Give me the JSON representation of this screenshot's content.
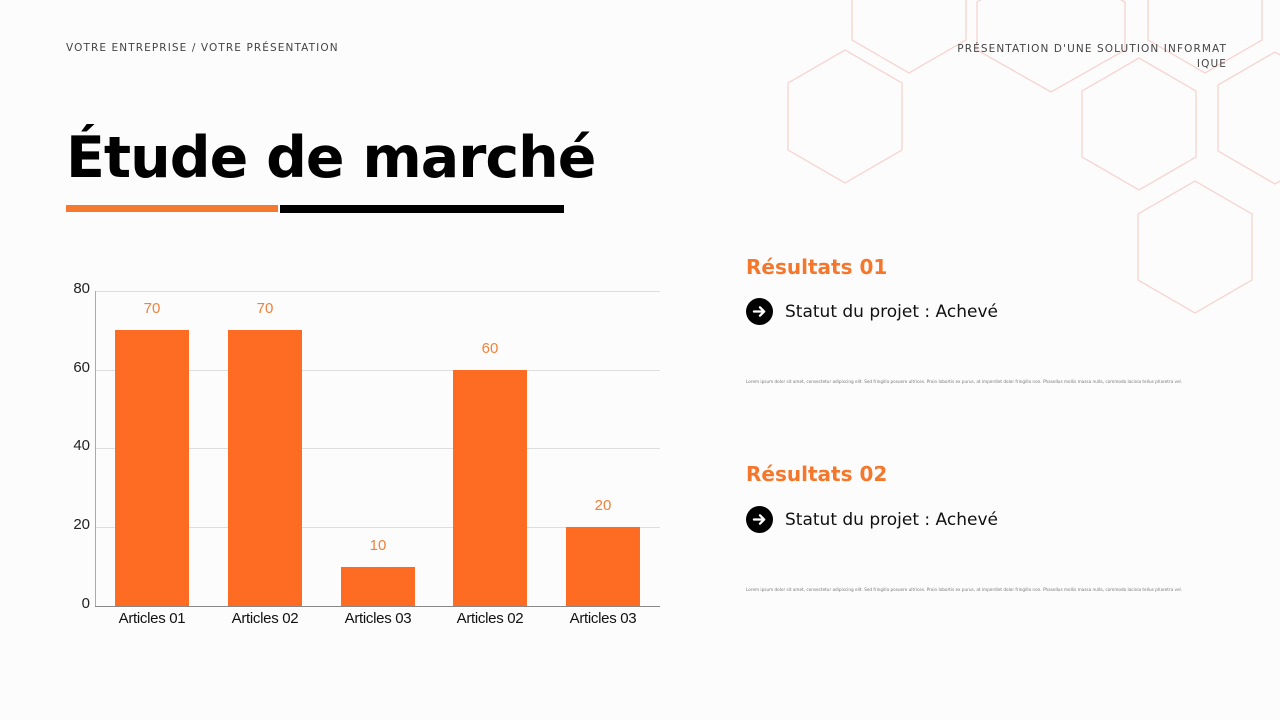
{
  "header": {
    "left": "VOTRE ENTREPRISE / VOTRE PRÉSENTATION",
    "right": "PRÉSENTATION D'UNE SOLUTION INFORMATIQUE"
  },
  "title": "Étude de marché",
  "colors": {
    "accent": "#f5772c",
    "bar": "#fe6c23",
    "bar_label": "#f0813b",
    "hexagon_stroke": "#f6d6d2",
    "text": "#111111"
  },
  "results": [
    {
      "title": "Résultats 01",
      "status_icon": "arrow-right-circle-icon",
      "status": "Statut du projet : Achevé",
      "body": "Lorem ipsum dolor sit amet, consectetur adipiscing elit. Sed fringilla posuere ultrices. Proin lobortis ex purus, at imperdiet dolor fringilla non. Phasellus mollis massa nulla, commodo lacinia tellus pharetra vel."
    },
    {
      "title": "Résultats 02",
      "status_icon": "arrow-right-circle-icon",
      "status": "Statut du projet : Achevé",
      "body": "Lorem ipsum dolor sit amet, consectetur adipiscing elit. Sed fringilla posuere ultrices. Proin lobortis ex purus, at imperdiet dolor fringilla non. Phasellus mollis massa nulla, commodo lacinia tellus pharetra vel."
    }
  ],
  "chart_data": {
    "type": "bar",
    "title": "",
    "xlabel": "",
    "ylabel": "",
    "categories": [
      "Articles 01",
      "Articles 02",
      "Articles 03",
      "Articles 02",
      "Articles 03"
    ],
    "values": [
      70,
      70,
      10,
      60,
      20
    ],
    "data_labels": [
      "70",
      "70",
      "10",
      "60",
      "20"
    ],
    "ylim": [
      0,
      80
    ],
    "yticks": [
      "0",
      "20",
      "40",
      "60",
      "80"
    ],
    "grid": true,
    "legend": "none",
    "color": "#fe6c23"
  }
}
